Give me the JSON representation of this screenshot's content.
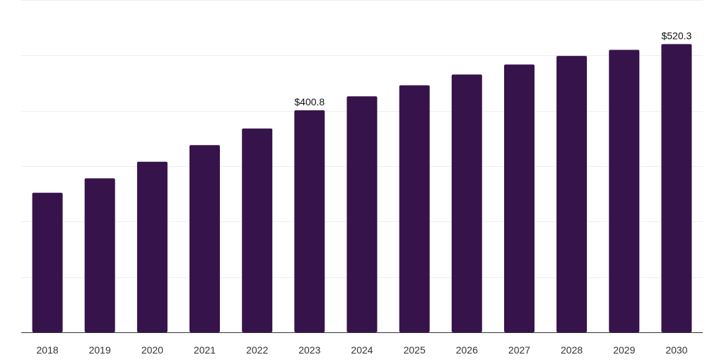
{
  "chart_data": {
    "type": "bar",
    "title": "",
    "xlabel": "",
    "ylabel": "",
    "categories": [
      "2018",
      "2019",
      "2020",
      "2021",
      "2022",
      "2023",
      "2024",
      "2025",
      "2026",
      "2027",
      "2028",
      "2029",
      "2030"
    ],
    "values": [
      252.0,
      278.0,
      308.0,
      338.0,
      368.0,
      400.8,
      426.0,
      446.0,
      465.5,
      483.5,
      499.0,
      510.0,
      520.3
    ],
    "data_labels": [
      {
        "category": "2023",
        "text": "$400.8"
      },
      {
        "category": "2030",
        "text": "$520.3"
      }
    ],
    "ylim": [
      0,
      600
    ],
    "grid": true,
    "bar_color": "#36134a",
    "legend": null
  }
}
